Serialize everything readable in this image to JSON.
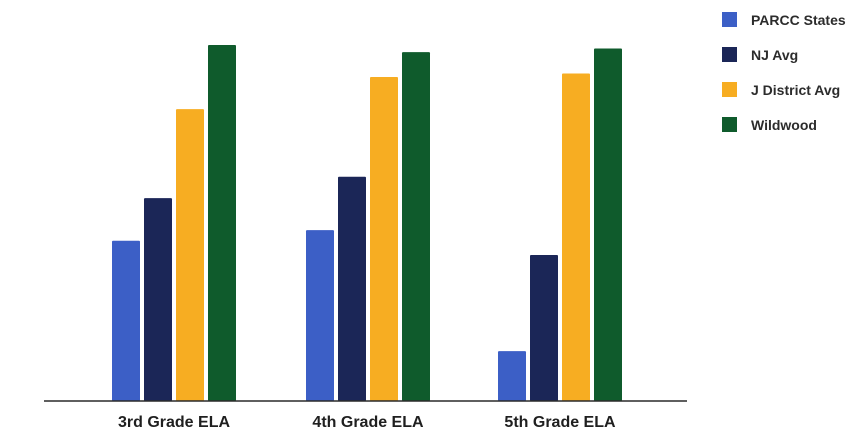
{
  "chart_data": {
    "type": "bar",
    "categories": [
      "3rd Grade ELA",
      "4th Grade ELA",
      "5th Grade ELA"
    ],
    "series": [
      {
        "name": "PARCC States",
        "color": "#3c5fc6",
        "values": [
          45,
          48,
          14
        ]
      },
      {
        "name": "NJ Avg",
        "color": "#1b2657",
        "values": [
          57,
          63,
          41
        ]
      },
      {
        "name": "J District Avg",
        "color": "#f7ad22",
        "values": [
          82,
          91,
          92
        ]
      },
      {
        "name": "Wildwood",
        "color": "#0f5b2c",
        "values": [
          100,
          98,
          99
        ]
      }
    ],
    "ylim": [
      0,
      100
    ],
    "grid": false,
    "legend_position": "top-right"
  }
}
